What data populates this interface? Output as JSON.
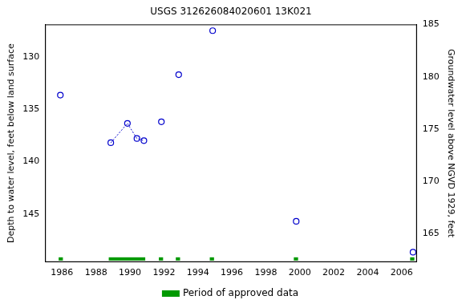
{
  "chart_data": {
    "type": "scatter",
    "title": "USGS 312626084020601 13K021",
    "y_label": "Depth to water level, feet below land surface",
    "y2_label": "Groundwater level above NGVD 1929, feet",
    "x": [
      1985.9,
      1988.87,
      1989.85,
      1990.41,
      1990.82,
      1991.85,
      1992.87,
      1994.87,
      1999.79,
      2006.67
    ],
    "series": [
      {
        "type": "scatter",
        "marker": "circle",
        "color": "#0000cc",
        "values": [
          133.65,
          138.2,
          136.35,
          137.8,
          138.0,
          136.2,
          131.7,
          127.5,
          145.7,
          148.65
        ]
      },
      {
        "type": "line",
        "line_style": "dotted",
        "color": "#0000cc",
        "values": [
          null,
          138.2,
          136.35,
          137.8,
          138.0,
          null,
          null,
          null,
          null,
          null
        ]
      }
    ],
    "xlim": [
      1985.0,
      2006.9
    ],
    "xticks": [
      1986,
      1988,
      1990,
      1992,
      1994,
      1996,
      1998,
      2000,
      2002,
      2004,
      2006
    ],
    "ylim": [
      149.6,
      126.9
    ],
    "yticks": [
      130,
      135,
      140,
      145
    ],
    "y2lim": [
      162.3,
      185
    ],
    "y2ticks": [
      165,
      170,
      175,
      180,
      185
    ],
    "grid": false,
    "legend": "bottom",
    "approved_periods": {
      "name": "Period of approved data",
      "color": "#009900",
      "ranges": [
        [
          1985.8,
          1986.05
        ],
        [
          1988.75,
          1990.9
        ],
        [
          1991.7,
          1991.95
        ],
        [
          1992.7,
          1992.95
        ],
        [
          1994.7,
          1994.95
        ],
        [
          1999.65,
          1999.9
        ],
        [
          2006.5,
          2006.75
        ]
      ]
    }
  }
}
